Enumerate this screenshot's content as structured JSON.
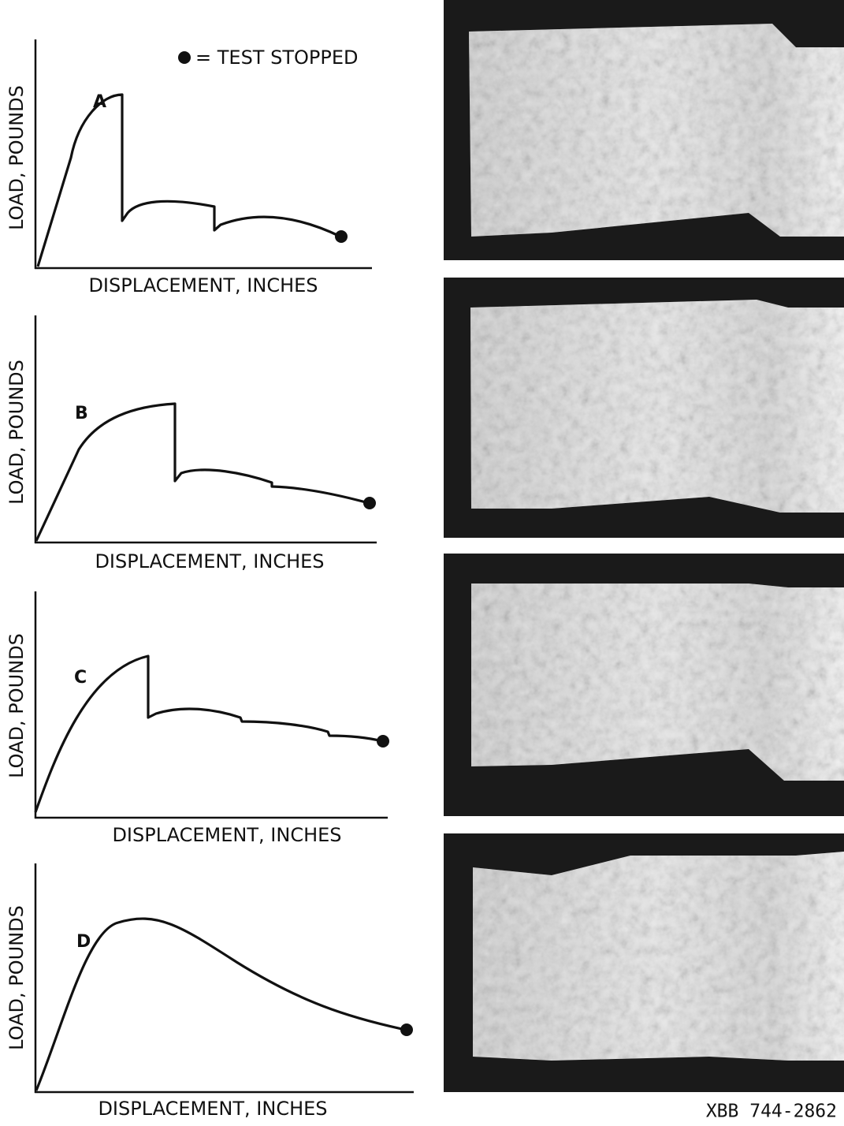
{
  "legend": {
    "text": "= TEST STOPPED"
  },
  "panels": [
    {
      "letter": "A",
      "y_label": "LOAD, POUNDS",
      "x_label": "DISPLACEMENT, INCHES"
    },
    {
      "letter": "B",
      "y_label": "LOAD, POUNDS",
      "x_label": "DISPLACEMENT, INCHES"
    },
    {
      "letter": "C",
      "y_label": "LOAD, POUNDS",
      "x_label": "DISPLACEMENT, INCHES"
    },
    {
      "letter": "D",
      "y_label": "LOAD, POUNDS",
      "x_label": "DISPLACEMENT, INCHES"
    }
  ],
  "caption": "XBB 744-2862"
}
